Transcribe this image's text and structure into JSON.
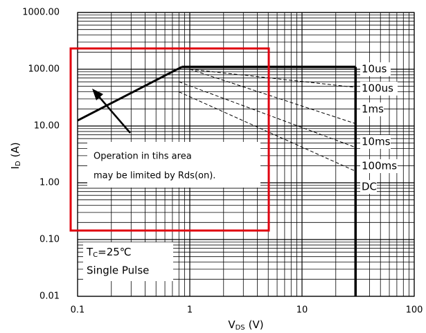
{
  "chart_data": {
    "type": "line",
    "xlabel": {
      "main": "V",
      "sub": "DS",
      "unit": "(V)"
    },
    "ylabel": {
      "main": "I",
      "sub": "D",
      "unit": "(A)"
    },
    "xscale": "log",
    "yscale": "log",
    "grid": true,
    "minor_grid": true,
    "xlim": [
      0.1,
      100
    ],
    "xticks": [
      0.1,
      1,
      10,
      100
    ],
    "ylim": [
      0.01,
      1000
    ],
    "yticks": [
      {
        "value": 0.01,
        "label": "0.01"
      },
      {
        "value": 0.1,
        "label": "0.10"
      },
      {
        "value": 1,
        "label": "1.00"
      },
      {
        "value": 10,
        "label": "10.00"
      },
      {
        "value": 100,
        "label": "100.00"
      },
      {
        "value": 1000,
        "label": "1000.00"
      }
    ],
    "limit_line": {
      "x": [
        0.1,
        0.85
      ],
      "values": [
        12.5,
        110
      ],
      "color": "#000000"
    },
    "series": [
      {
        "name": "10us",
        "color": "#000000",
        "dashed": false,
        "x": [
          0.85,
          30
        ],
        "values": [
          110,
          110
        ]
      },
      {
        "name": "100us",
        "color": "#000000",
        "dashed": true,
        "x": [
          1,
          30
        ],
        "values": [
          100,
          48
        ]
      },
      {
        "name": "1ms",
        "color": "#000000",
        "dashed": true,
        "x": [
          1,
          30
        ],
        "values": [
          100,
          11
        ]
      },
      {
        "name": "10ms",
        "color": "#000000",
        "dashed": true,
        "x": [
          0.8,
          30
        ],
        "values": [
          60,
          4.2
        ]
      },
      {
        "name": "100ms",
        "color": "#000000",
        "dashed": true,
        "x": [
          0.8,
          30
        ],
        "values": [
          40,
          1.6
        ]
      },
      {
        "name": "DC",
        "color": "#000000",
        "dashed": false,
        "x": [
          30,
          30
        ],
        "values": [
          110,
          0.01
        ]
      }
    ],
    "annotation": {
      "lines": [
        "Operation in tihs area",
        "may be limited by Rds(on)."
      ]
    },
    "conditions": {
      "t_main": "T",
      "t_sub": "C",
      "t_rest": "=25℃",
      "pulse": "Single Pulse"
    }
  }
}
